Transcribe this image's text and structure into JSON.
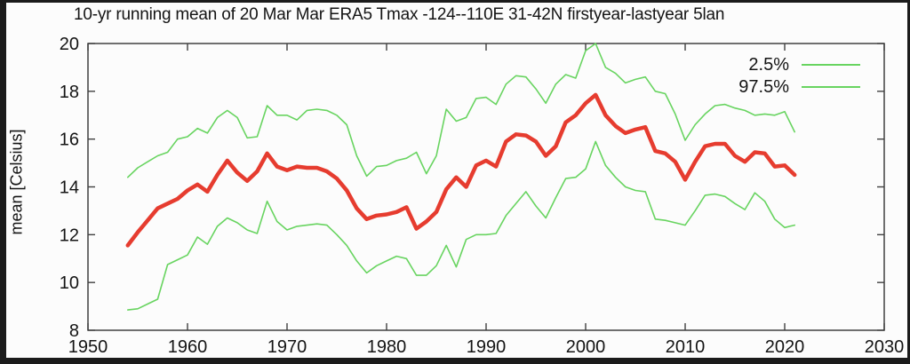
{
  "colors": {
    "mean_line": "#e63c2f",
    "percentile_line": "#68d460",
    "axis": "#404040",
    "frame": "#1b1b1b",
    "background": "#fcfcfc",
    "text": "#141414"
  },
  "chart_data": {
    "type": "line",
    "title": "10-yr running mean of 20 Mar Mar ERA5 Tmax -124--110E 31-42N firstyear-lastyear 5lan",
    "xlabel": "",
    "ylabel": "mean [Celsius]",
    "xlim": [
      1950,
      2030
    ],
    "ylim": [
      8,
      20
    ],
    "xticks": [
      1950,
      1960,
      1970,
      1980,
      1990,
      2000,
      2010,
      2020,
      2030
    ],
    "yticks": [
      8,
      10,
      12,
      14,
      16,
      18,
      20
    ],
    "grid": false,
    "legend_position": "top-right",
    "legend": [
      "2.5%",
      "97.5%"
    ],
    "x": [
      1954,
      1955,
      1956,
      1957,
      1958,
      1959,
      1960,
      1961,
      1962,
      1963,
      1964,
      1965,
      1966,
      1967,
      1968,
      1969,
      1970,
      1971,
      1972,
      1973,
      1974,
      1975,
      1976,
      1977,
      1978,
      1979,
      1980,
      1981,
      1982,
      1983,
      1984,
      1985,
      1986,
      1987,
      1988,
      1989,
      1990,
      1991,
      1992,
      1993,
      1994,
      1995,
      1996,
      1997,
      1998,
      1999,
      2000,
      2001,
      2002,
      2003,
      2004,
      2005,
      2006,
      2007,
      2008,
      2009,
      2010,
      2011,
      2012,
      2013,
      2014,
      2015,
      2016,
      2017,
      2018,
      2019,
      2020,
      2021
    ],
    "series": [
      {
        "name": "2.5%",
        "color": "#68d460",
        "width": 1.6,
        "values": [
          8.85,
          8.9,
          9.1,
          9.3,
          10.75,
          10.95,
          11.15,
          11.9,
          11.6,
          12.35,
          12.7,
          12.5,
          12.2,
          12.05,
          13.4,
          12.55,
          12.2,
          12.35,
          12.4,
          12.45,
          12.4,
          12.0,
          11.55,
          10.9,
          10.4,
          10.7,
          10.9,
          11.1,
          11.0,
          10.3,
          10.3,
          10.7,
          11.55,
          10.65,
          11.8,
          12.0,
          12.0,
          12.05,
          12.8,
          13.3,
          13.8,
          13.2,
          12.7,
          13.55,
          14.35,
          14.4,
          14.75,
          15.9,
          14.9,
          14.4,
          14.0,
          13.85,
          13.8,
          12.65,
          12.6,
          12.5,
          12.4,
          13.0,
          13.65,
          13.7,
          13.6,
          13.3,
          13.05,
          13.75,
          13.4,
          12.65,
          12.3,
          12.4
        ]
      },
      {
        "name": "97.5%",
        "color": "#68d460",
        "width": 1.6,
        "values": [
          14.4,
          14.8,
          15.05,
          15.3,
          15.45,
          16.0,
          16.1,
          16.45,
          16.25,
          16.9,
          17.2,
          16.9,
          16.05,
          16.1,
          17.4,
          17.0,
          17.0,
          16.8,
          17.2,
          17.25,
          17.2,
          17.0,
          16.6,
          15.3,
          14.45,
          14.85,
          14.9,
          15.1,
          15.2,
          15.45,
          14.55,
          15.3,
          17.25,
          16.75,
          16.9,
          17.7,
          17.75,
          17.45,
          18.3,
          18.65,
          18.6,
          18.1,
          17.5,
          18.3,
          18.7,
          18.55,
          19.7,
          20.0,
          19.0,
          18.75,
          18.35,
          18.5,
          18.6,
          18.0,
          17.9,
          17.05,
          15.95,
          16.6,
          17.05,
          17.4,
          17.45,
          17.3,
          17.2,
          17.0,
          17.05,
          17.0,
          17.15,
          16.3
        ]
      },
      {
        "name": "mean",
        "color": "#e63c2f",
        "width": 4.5,
        "values": [
          11.55,
          12.1,
          12.6,
          13.1,
          13.3,
          13.5,
          13.85,
          14.1,
          13.8,
          14.5,
          15.1,
          14.6,
          14.25,
          14.65,
          15.4,
          14.85,
          14.7,
          14.85,
          14.8,
          14.8,
          14.65,
          14.35,
          13.85,
          13.1,
          12.65,
          12.8,
          12.85,
          12.95,
          13.15,
          12.25,
          12.55,
          12.95,
          13.9,
          14.4,
          14.0,
          14.9,
          15.1,
          14.85,
          15.9,
          16.2,
          16.15,
          15.9,
          15.3,
          15.7,
          16.7,
          17.0,
          17.5,
          17.85,
          17.0,
          16.55,
          16.25,
          16.4,
          16.5,
          15.5,
          15.4,
          15.05,
          14.3,
          15.05,
          15.7,
          15.8,
          15.8,
          15.3,
          15.05,
          15.45,
          15.4,
          14.85,
          14.9,
          14.5
        ]
      }
    ]
  }
}
